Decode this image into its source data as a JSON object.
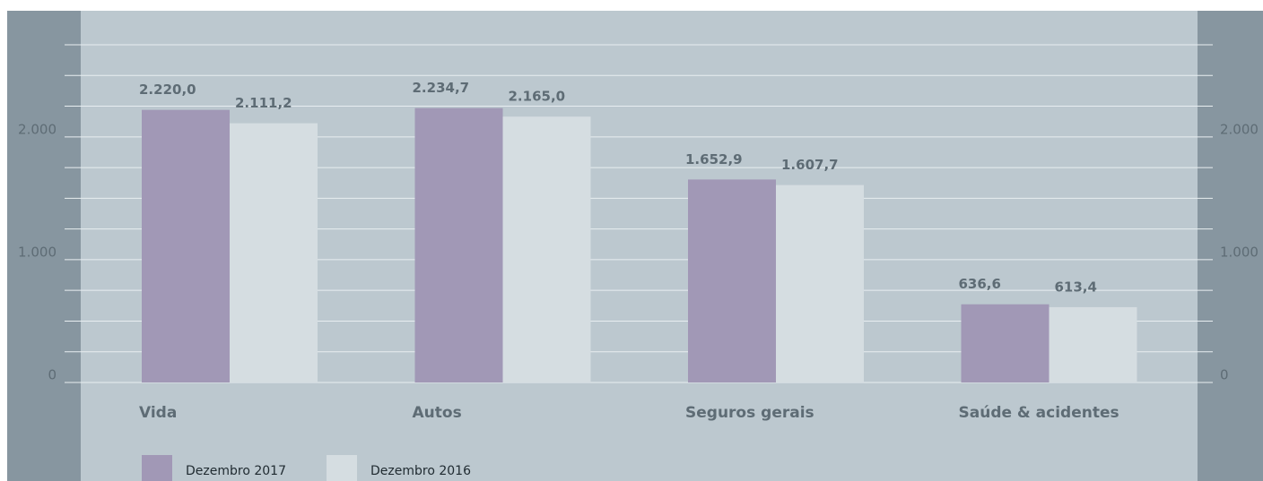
{
  "chart_data": {
    "type": "bar",
    "categories": [
      "Vida",
      "Autos",
      "Seguros gerais",
      "Saúde & acidentes"
    ],
    "series": [
      {
        "name": "Dezembro 2017",
        "color": "#a198b6",
        "values": [
          2220.0,
          2234.7,
          1652.9,
          636.6
        ],
        "value_labels": [
          "2.220,0",
          "2.234,7",
          "1.652,9",
          "636,6"
        ]
      },
      {
        "name": "Dezembro 2016",
        "color": "#d5dde1",
        "values": [
          2111.2,
          2165.0,
          1607.7,
          613.4
        ],
        "value_labels": [
          "2.111,2",
          "2.165,0",
          "1.607,7",
          "613,4"
        ]
      }
    ],
    "ylim": [
      0,
      2750
    ],
    "yticks": [
      0,
      {
        "value": 1000,
        "label": "1.000"
      },
      {
        "value": 2000,
        "label": "2.000"
      }
    ],
    "minor_yticks": [
      250,
      500,
      750,
      1250,
      1500,
      1750,
      2250,
      2500,
      2750
    ],
    "grid": true,
    "secondary_axis_labels": true,
    "legend": "bottom-left"
  }
}
